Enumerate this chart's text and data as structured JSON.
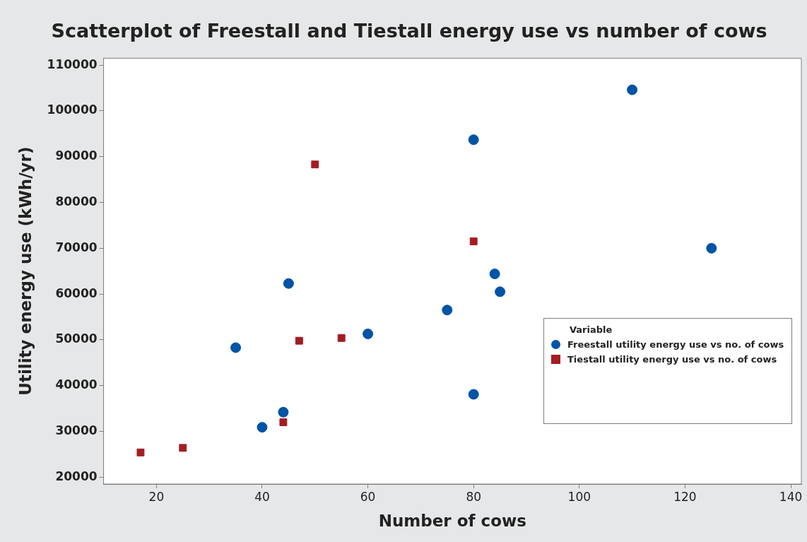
{
  "chart_data": {
    "type": "scatter",
    "title": "Scatterplot of Freestall and Tiestall energy use vs number of cows",
    "xlabel": "Number of cows",
    "ylabel": "Utility energy use (kWh/yr)",
    "legend_title": "Variable",
    "legend": "right",
    "xlim": [
      10,
      142
    ],
    "xticks": [
      20,
      40,
      60,
      80,
      100,
      120,
      140
    ],
    "ylim": [
      18500,
      111500
    ],
    "yticks": [
      20000,
      30000,
      40000,
      50000,
      60000,
      70000,
      80000,
      90000,
      100000,
      110000
    ],
    "series": [
      {
        "name": "Freestall utility energy use vs no. of cows",
        "color": "#0054a6",
        "marker": "circle",
        "x": [
          35,
          40,
          44,
          45,
          60,
          75,
          80,
          80,
          84,
          85,
          110,
          125
        ],
        "values": [
          48300,
          30900,
          34200,
          62300,
          51300,
          56500,
          93700,
          38100,
          64400,
          60500,
          104600,
          70000
        ]
      },
      {
        "name": "Tiestall utility energy use vs no. of cows",
        "color": "#a31d22",
        "marker": "square",
        "x": [
          17,
          25,
          44,
          47,
          50,
          55,
          80
        ],
        "values": [
          25400,
          26400,
          32000,
          49800,
          88300,
          50400,
          71500
        ]
      }
    ]
  }
}
